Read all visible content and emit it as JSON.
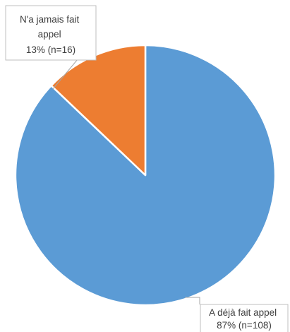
{
  "chart_data": {
    "type": "pie",
    "slices": [
      {
        "label": "A déjà fait appel",
        "value": 108,
        "percent_text": "87% (n=108)",
        "color": "#5B9BD5"
      },
      {
        "label": "N'a jamais fait appel",
        "value": 16,
        "percent_text": "13% (n=16)",
        "color": "#ED7D31"
      }
    ],
    "legend": false,
    "data_labels": [
      {
        "lines": [
          "N'a jamais fait",
          "appel",
          "13% (n=16)"
        ]
      },
      {
        "lines": [
          "A déjà fait appel",
          "87% (n=108)"
        ]
      }
    ]
  }
}
